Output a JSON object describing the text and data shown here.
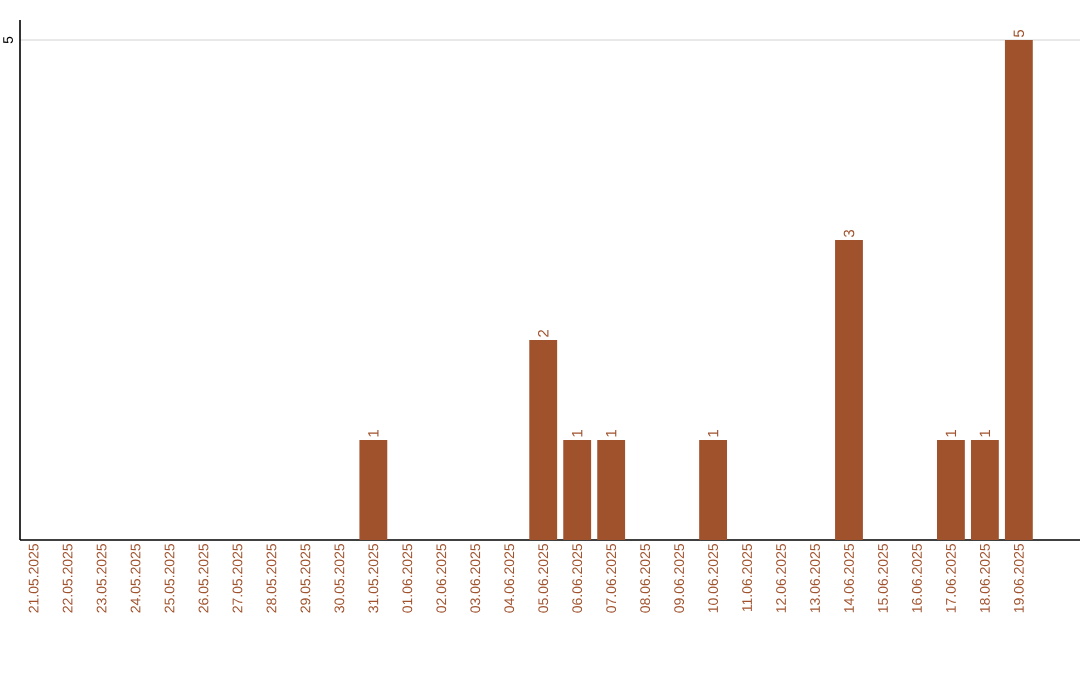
{
  "chart_data": {
    "type": "bar",
    "categories": [
      "21.05.2025",
      "22.05.2025",
      "23.05.2025",
      "24.05.2025",
      "25.05.2025",
      "26.05.2025",
      "27.05.2025",
      "28.05.2025",
      "29.05.2025",
      "30.05.2025",
      "31.05.2025",
      "01.06.2025",
      "02.06.2025",
      "03.06.2025",
      "04.06.2025",
      "05.06.2025",
      "06.06.2025",
      "07.06.2025",
      "08.06.2025",
      "09.06.2025",
      "10.06.2025",
      "11.06.2025",
      "12.06.2025",
      "13.06.2025",
      "14.06.2025",
      "15.06.2025",
      "16.06.2025",
      "17.06.2025",
      "18.06.2025",
      "19.06.2025"
    ],
    "values": [
      0,
      0,
      0,
      0,
      0,
      0,
      0,
      0,
      0,
      0,
      1,
      0,
      0,
      0,
      0,
      2,
      1,
      1,
      0,
      0,
      1,
      0,
      0,
      0,
      3,
      0,
      0,
      1,
      1,
      5
    ],
    "value_labels": [
      null,
      null,
      null,
      null,
      null,
      null,
      null,
      null,
      null,
      null,
      "1",
      null,
      null,
      null,
      null,
      "2",
      "1",
      "1",
      null,
      null,
      "1",
      null,
      null,
      null,
      "3",
      null,
      null,
      "1",
      "1",
      "5"
    ],
    "color": "#a0522d",
    "ylim": [
      0,
      5.2
    ],
    "yticks": [
      5
    ],
    "grid": "y"
  }
}
